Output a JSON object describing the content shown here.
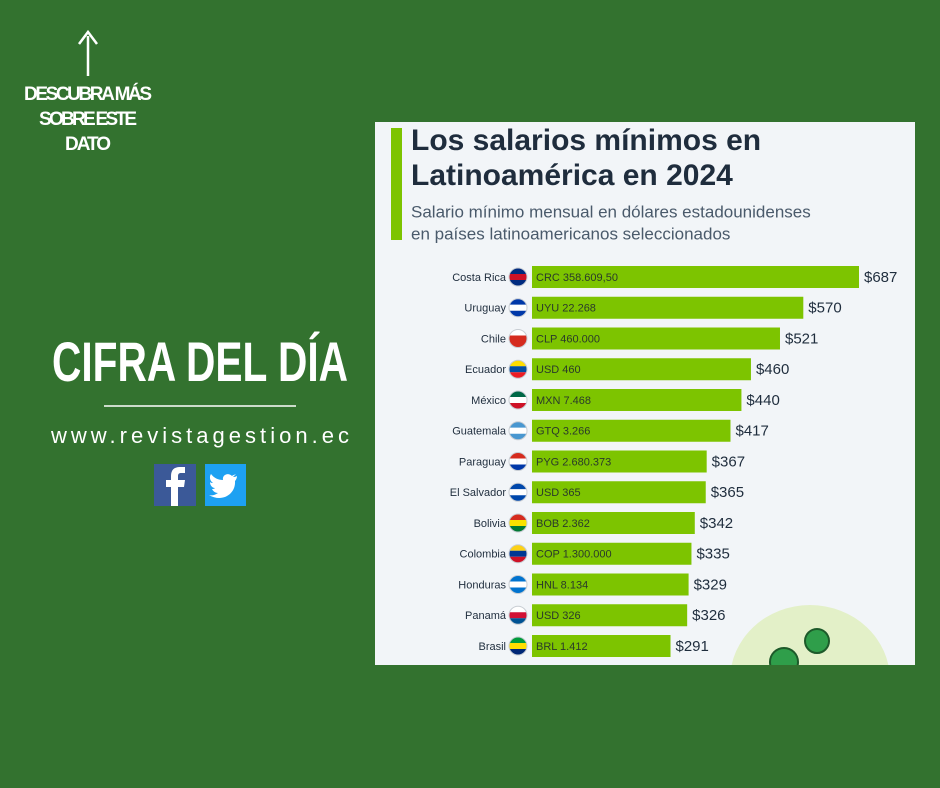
{
  "panel": {
    "link_hint": [
      "DESCUBRA MÁS",
      "SOBRE ESTE",
      "DATO"
    ],
    "headline": "CIFRA DEL DÍA",
    "website": "www.revistagestion.ec"
  },
  "chart_data": {
    "type": "bar",
    "orientation": "horizontal",
    "title": [
      "Los salarios mínimos en",
      "Latinoamérica en 2024"
    ],
    "subtitle": [
      "Salario mínimo mensual en dólares estadounidenses",
      "en países latinoamericanos seleccionados"
    ],
    "categories": [
      "Costa Rica",
      "Uruguay",
      "Chile",
      "Ecuador",
      "México",
      "Guatemala",
      "Paraguay",
      "El Salvador",
      "Bolivia",
      "Colombia",
      "Honduras",
      "Panamá",
      "Brasil"
    ],
    "values": [
      687,
      570,
      521,
      460,
      440,
      417,
      367,
      365,
      342,
      335,
      329,
      326,
      291
    ],
    "value_labels": [
      "$687",
      "$570",
      "$521",
      "$460",
      "$440",
      "$417",
      "$367",
      "$365",
      "$342",
      "$335",
      "$329",
      "$326",
      "$291"
    ],
    "local_currency": [
      "CRC 358.609,50",
      "UYU 22.268",
      "CLP 460.000",
      "USD 460",
      "MXN 7.468",
      "GTQ 3.266",
      "PYG 2.680.373",
      "USD 365",
      "BOB 2.362",
      "COP 1.300.000",
      "HNL 8.134",
      "USD 326",
      "BRL 1.412"
    ],
    "color": "#7dc400"
  }
}
